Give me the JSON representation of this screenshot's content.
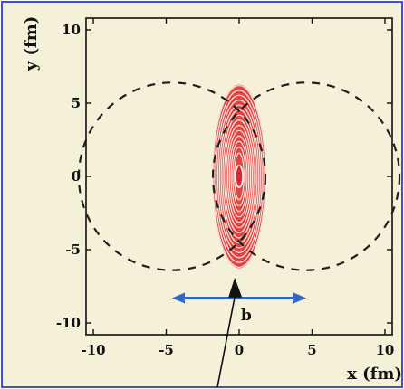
{
  "colors": {
    "background": "#f4f1d8",
    "border": "#3a55c8",
    "contour": "#d8282c",
    "arrow": "#2f66c8",
    "pointer": "#111111",
    "dashes": "#1f1f1f"
  },
  "annotation": {
    "b_label": "b"
  },
  "chart_data": {
    "type": "contour",
    "xlabel": "x (fm)",
    "ylabel": "y (fm)",
    "xlim": [
      -10.5,
      10.5
    ],
    "ylim": [
      -10.8,
      10.8
    ],
    "xticks": [
      -10,
      -5,
      0,
      5,
      10
    ],
    "yticks": [
      -10,
      -5,
      0,
      5,
      10
    ],
    "tick_labels_x": [
      "-10",
      "-5",
      "0",
      "5",
      "10"
    ],
    "tick_labels_y": [
      "-10",
      "-5",
      "0",
      "5",
      "10"
    ],
    "grid": false,
    "nuclei": [
      {
        "shape": "circle",
        "style": "dashed",
        "center": [
          -4.6,
          0
        ],
        "radius": 6.4
      },
      {
        "shape": "circle",
        "style": "dashed",
        "center": [
          4.6,
          0
        ],
        "radius": 6.4
      }
    ],
    "overlap_region": {
      "center": [
        0,
        0
      ],
      "half_width": 1.8,
      "half_height": 6.2
    },
    "contour_levels": 14,
    "impact_parameter_arrow": {
      "from": [
        -4.6,
        -8.3
      ],
      "to": [
        4.6,
        -8.3
      ]
    }
  }
}
